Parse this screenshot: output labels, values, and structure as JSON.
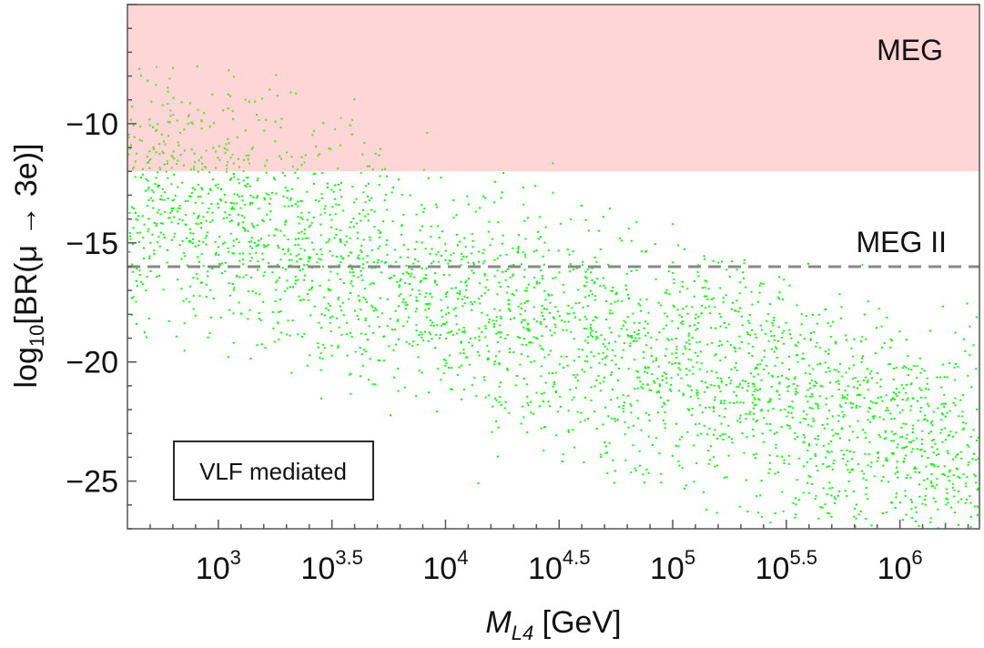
{
  "chart_data": {
    "type": "scatter",
    "title": "",
    "xlabel": {
      "main": "M",
      "sub": "L4",
      "unit": "[GeV]"
    },
    "ylabel": {
      "prefix": "log",
      "sub": "10",
      "rest": "[BR(μ → 3e)]"
    },
    "x_scale": "log10",
    "xlim_log10": [
      2.6,
      6.35
    ],
    "ylim": [
      -27,
      -5
    ],
    "x_ticks": [
      {
        "value_log10": 3,
        "base": "10",
        "exp": "3"
      },
      {
        "value_log10": 3.5,
        "base": "10",
        "exp": "3.5"
      },
      {
        "value_log10": 4,
        "base": "10",
        "exp": "4"
      },
      {
        "value_log10": 4.5,
        "base": "10",
        "exp": "4.5"
      },
      {
        "value_log10": 5,
        "base": "10",
        "exp": "5"
      },
      {
        "value_log10": 5.5,
        "base": "10",
        "exp": "5.5"
      },
      {
        "value_log10": 6,
        "base": "10",
        "exp": "6"
      }
    ],
    "y_ticks": [
      {
        "value": -10,
        "label": "−10"
      },
      {
        "value": -15,
        "label": "−15"
      },
      {
        "value": -20,
        "label": "−20"
      },
      {
        "value": -25,
        "label": "−25"
      }
    ],
    "regions": [
      {
        "name": "MEG",
        "type": "excluded_band",
        "y_from": -12,
        "y_to": -5,
        "color": "#ffd6d6"
      }
    ],
    "reference_lines": [
      {
        "name": "MEG II",
        "y": -16,
        "style": "dashed",
        "color": "#888888"
      }
    ],
    "series": [
      {
        "name": "VLF mediated",
        "color": "#00ff00",
        "trend": {
          "slope_per_decade": -3.0,
          "anchor_log10": 3,
          "anchor_y": -14
        },
        "point_count": 14000
      }
    ],
    "legend": {
      "text": "VLF mediated",
      "placement": "bottom-left"
    }
  }
}
